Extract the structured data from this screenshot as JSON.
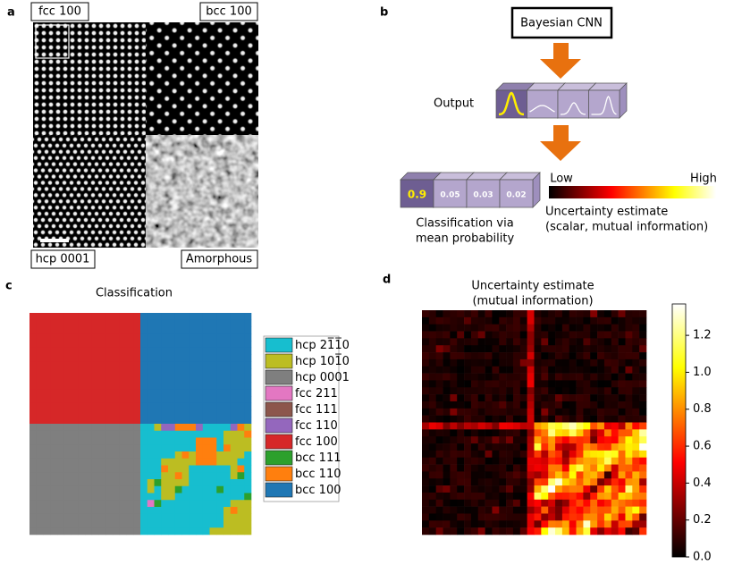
{
  "panel_labels": [
    "a",
    "b",
    "c",
    "d"
  ],
  "panel_a": {
    "labels": [
      "fcc 100",
      "bcc 100",
      "hcp 0001",
      "Amorphous"
    ]
  },
  "panel_b": {
    "model": "Bayesian CNN",
    "output_label": "Output",
    "probabilities": [
      0.9,
      0.05,
      0.03,
      0.02
    ],
    "caption": [
      "Classification via",
      "mean probability"
    ],
    "colorbar": {
      "low": "Low",
      "high": "High"
    },
    "colorbar_caption": [
      "Uncertainty estimate",
      "(scalar, mutual information)"
    ]
  },
  "panel_c": {
    "title": "Classification",
    "legend": [
      {
        "name": "hcp 21̅1̅0",
        "color": "#17becf"
      },
      {
        "name": "hcp 101̅0",
        "color": "#bcbd22"
      },
      {
        "name": "hcp 0001",
        "color": "#7f7f7f"
      },
      {
        "name": "fcc 211",
        "color": "#e377c2"
      },
      {
        "name": "fcc 111",
        "color": "#8c564b"
      },
      {
        "name": "fcc 110",
        "color": "#9467bd"
      },
      {
        "name": "fcc 100",
        "color": "#d62728"
      },
      {
        "name": "bcc 111",
        "color": "#2ca02c"
      },
      {
        "name": "bcc 110",
        "color": "#ff7f0e"
      },
      {
        "name": "bcc 100",
        "color": "#1f77b4"
      }
    ]
  },
  "panel_d": {
    "title": [
      "Uncertainty estimate",
      "(mutual information)"
    ],
    "colorbar": {
      "lim": [
        0,
        1.37
      ],
      "ticks": [
        {
          "value": 0,
          "label": "0.0"
        },
        {
          "value": 0.2,
          "label": "0.2"
        },
        {
          "value": 0.4,
          "label": "0.4"
        },
        {
          "value": 0.6,
          "label": "0.6"
        },
        {
          "value": 0.8,
          "label": "0.8"
        },
        {
          "value": 1.0,
          "label": "1.0"
        },
        {
          "value": 1.2,
          "label": "1.2"
        }
      ]
    }
  }
}
